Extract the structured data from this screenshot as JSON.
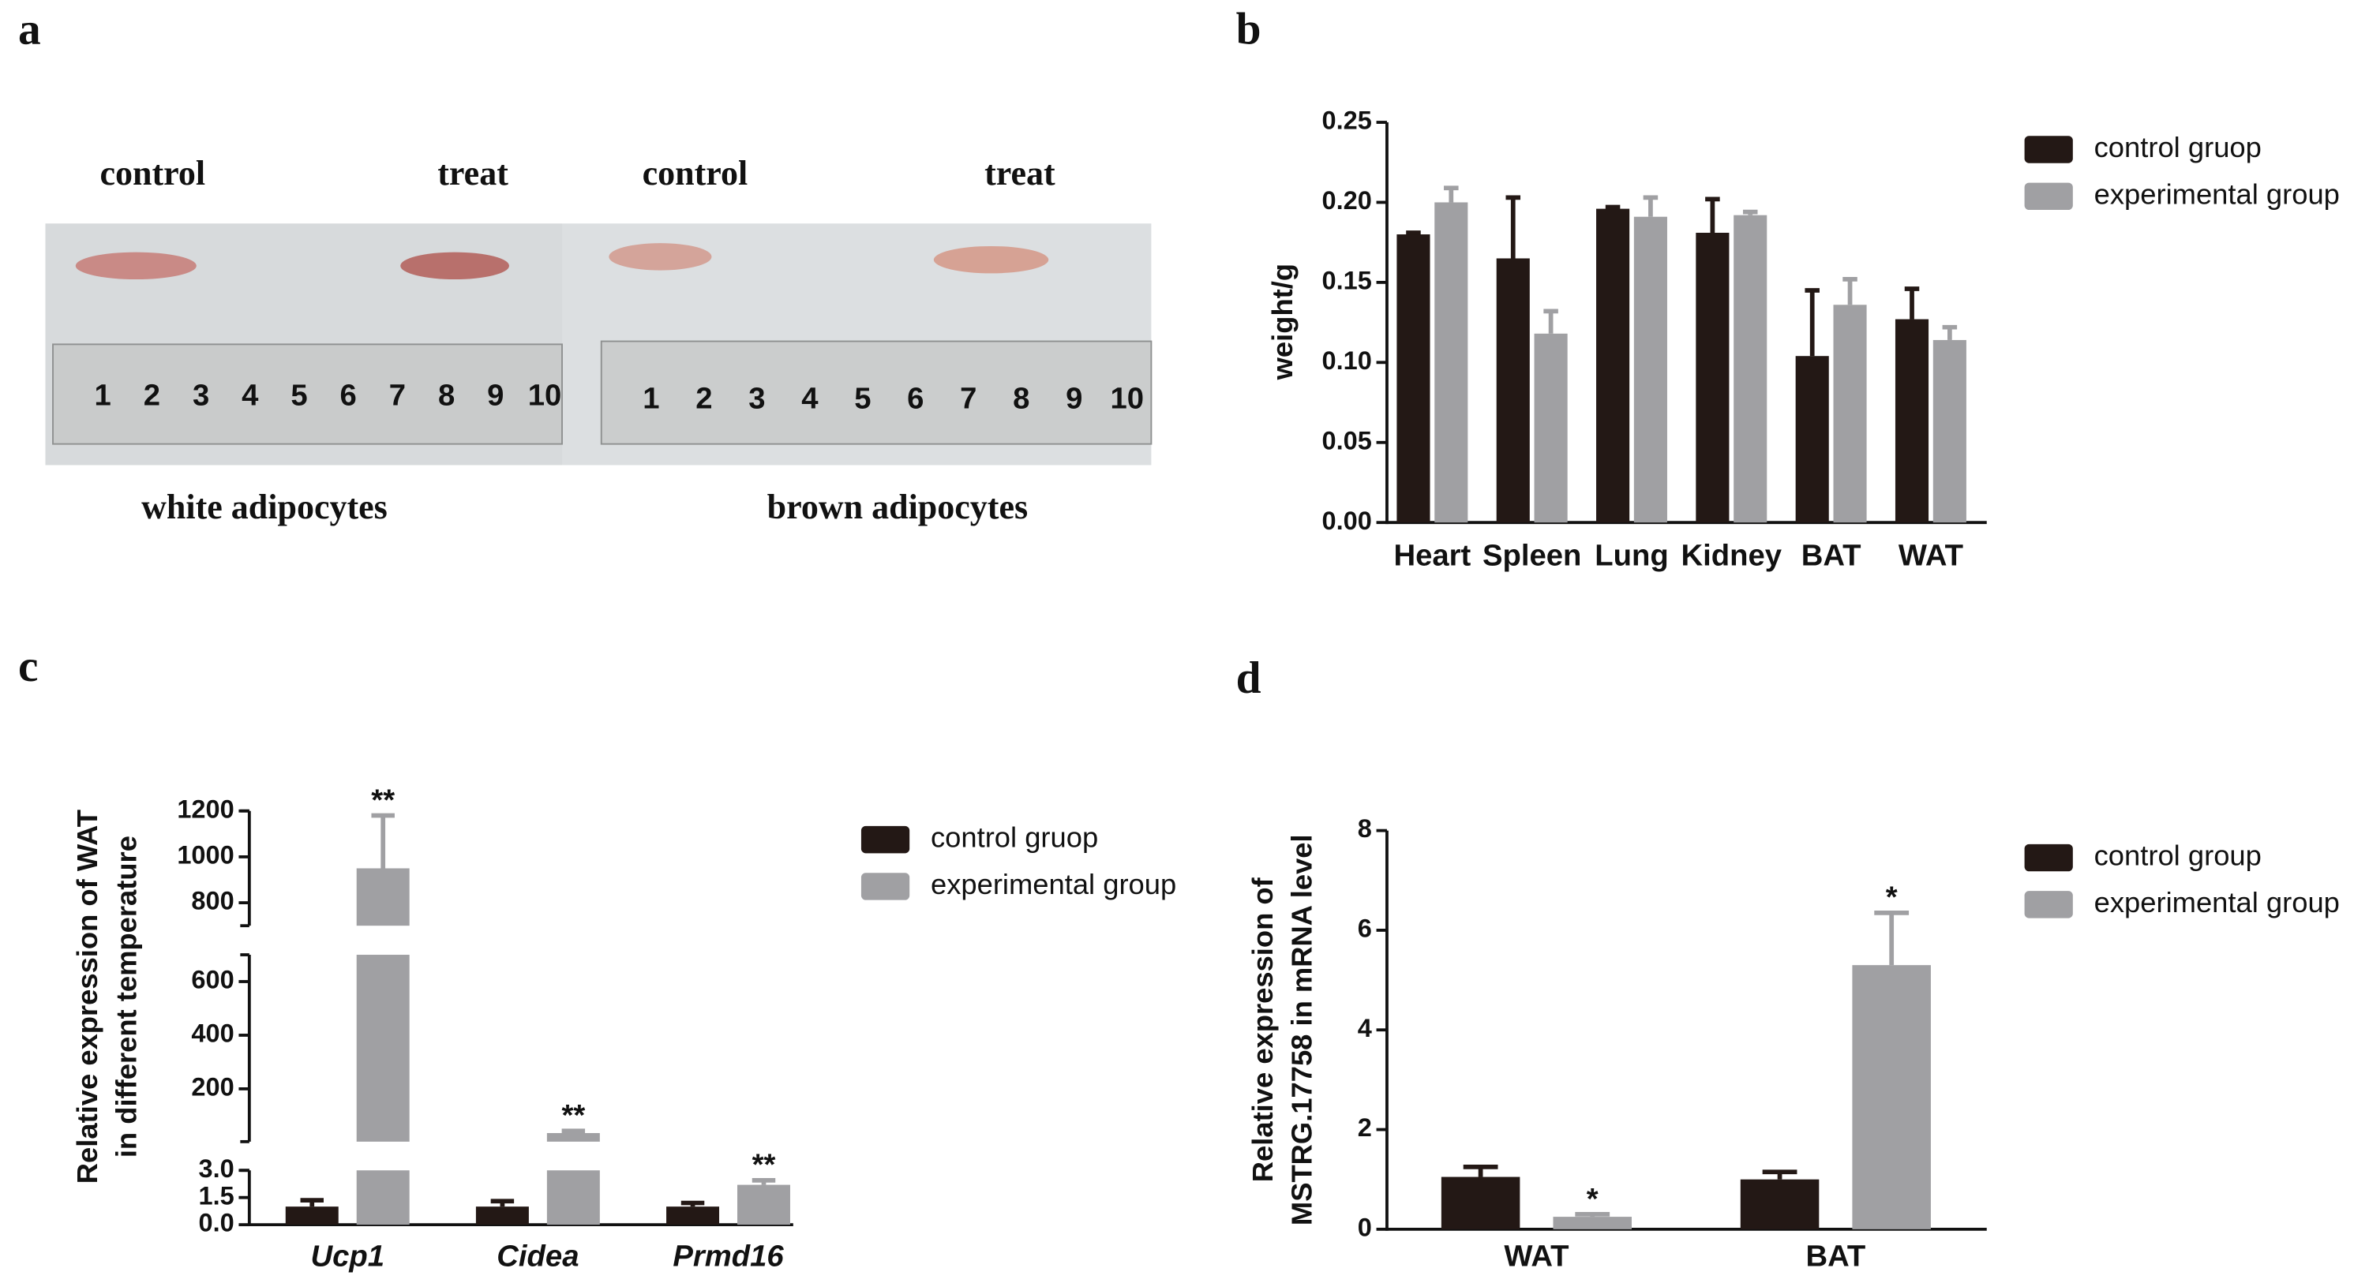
{
  "panel_labels": [
    "a",
    "b",
    "c",
    "d"
  ],
  "photo": {
    "left": {
      "labels": [
        "control",
        "treat"
      ],
      "caption": "white adipocytes"
    },
    "right": {
      "labels": [
        "control",
        "treat"
      ],
      "caption": "brown adipocytes"
    },
    "ruler_labels": [
      1,
      2,
      3,
      4,
      5,
      6,
      7,
      8,
      9,
      10
    ]
  },
  "chart_data": [
    {
      "type": "bar",
      "ylabel": [
        "weight/g"
      ],
      "categories": [
        "Heart",
        "Spleen",
        "Lung",
        "Kidney",
        "BAT",
        "WAT"
      ],
      "series": [
        {
          "name": "control gruop",
          "color": "#231815",
          "values": [
            0.18,
            0.165,
            0.196,
            0.181,
            0.104,
            0.127
          ],
          "errors": [
            0.001,
            0.038,
            0.001,
            0.021,
            0.041,
            0.019
          ]
        },
        {
          "name": "experimental group",
          "color": "#a0a0a3",
          "values": [
            0.2,
            0.118,
            0.191,
            0.192,
            0.136,
            0.114
          ],
          "errors": [
            0.009,
            0.014,
            0.012,
            0.002,
            0.016,
            0.008
          ]
        }
      ],
      "ylim": [
        0,
        0.25
      ],
      "yticks": [
        {
          "value": 0,
          "label": "0.00"
        },
        {
          "value": 0.05,
          "label": "0.05"
        },
        {
          "value": 0.1,
          "label": "0.10"
        },
        {
          "value": 0.15,
          "label": "0.15"
        },
        {
          "value": 0.2,
          "label": "0.20"
        },
        {
          "value": 0.25,
          "label": "0.25"
        }
      ],
      "legend": "upper right"
    },
    {
      "type": "bar",
      "ylabel": [
        "Relative expression of WAT",
        "in different temperature"
      ],
      "category_style": "italic",
      "categories": [
        "Ucp1",
        "Cidea",
        "Prmd16"
      ],
      "series": [
        {
          "name": "control gruop",
          "color": "#231815",
          "values": [
            1.0,
            1.0,
            1.0
          ],
          "errors": [
            0.35,
            0.3,
            0.2
          ]
        },
        {
          "name": "experimental group",
          "color": "#a0a0a3",
          "values": [
            950,
            35,
            2.2
          ],
          "errors": [
            230,
            8,
            0.25
          ],
          "annotations": [
            "**",
            "**",
            "**"
          ]
        }
      ],
      "broken_axis": true,
      "y_segments": [
        {
          "ylim": [
            0,
            3
          ],
          "yticks": [
            {
              "value": 0,
              "label": "0.0"
            },
            {
              "value": 1.5,
              "label": "1.5"
            },
            {
              "value": 3,
              "label": "3.0"
            }
          ]
        },
        {
          "ylim": [
            3,
            700
          ],
          "yticks": [
            200,
            400,
            600
          ]
        },
        {
          "ylim": [
            700,
            1200
          ],
          "yticks": [
            800,
            1000,
            1200
          ]
        }
      ],
      "legend": "upper right"
    },
    {
      "type": "bar",
      "ylabel": [
        "Relative expression of",
        "MSTRG.17758 in mRNA level"
      ],
      "categories": [
        "WAT",
        "BAT"
      ],
      "series": [
        {
          "name": "control group",
          "color": "#231815",
          "values": [
            1.05,
            1.0
          ],
          "errors": [
            0.2,
            0.15
          ]
        },
        {
          "name": "experimental group",
          "color": "#a0a0a3",
          "values": [
            0.25,
            5.3
          ],
          "errors": [
            0.05,
            1.05
          ],
          "annotations": [
            "*",
            "*"
          ]
        }
      ],
      "ylim": [
        0,
        8
      ],
      "yticks": [
        0,
        2,
        4,
        6,
        8
      ],
      "legend": "upper right"
    }
  ]
}
